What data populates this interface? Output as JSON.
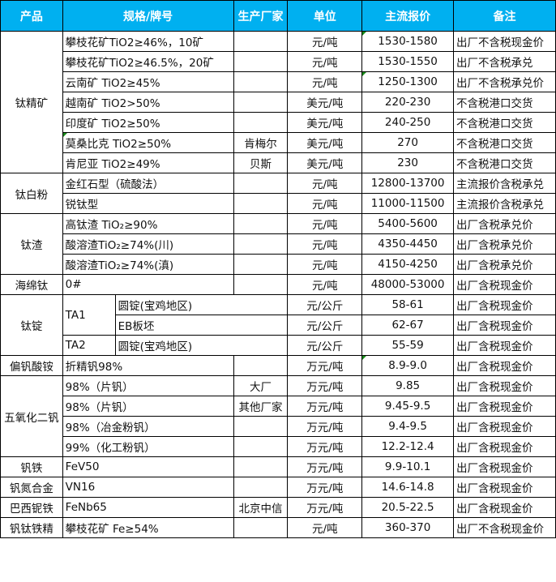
{
  "header": {
    "product": "产品",
    "spec": "规格/牌号",
    "producer": "生产厂家",
    "unit": "单位",
    "price": "主流报价",
    "note": "备注"
  },
  "colors": {
    "header_bg": "#00b0f0",
    "comment_marker": "#1a8a1a"
  },
  "groups": [
    {
      "product": "钛精矿",
      "rows": [
        {
          "spec": "攀枝花矿TiO2≥46%，10矿",
          "producer": "",
          "unit": "元/吨",
          "price": "1530-1580",
          "note": "出厂不含税现金价",
          "price_flag": true
        },
        {
          "spec": "攀枝花矿TiO2≥46.5%，20矿",
          "producer": "",
          "unit": "元/吨",
          "price": "1530-1550",
          "note": "出厂不含税承兑"
        },
        {
          "spec": "云南矿 TiO2≥45%",
          "producer": "",
          "unit": "元/吨",
          "price": "1250-1300",
          "note": "出厂不含税承兑价",
          "price_flag": true
        },
        {
          "spec": "越南矿 TiO2>50%",
          "producer": "",
          "unit": "美元/吨",
          "price": "220-230",
          "note": "不含税港口交货"
        },
        {
          "spec": "印度矿 TiO2≥50%",
          "producer": "",
          "unit": "美元/吨",
          "price": "240-250",
          "note": "不含税港口交货"
        },
        {
          "spec": "莫桑比克 TiO2≥50%",
          "producer": "肯梅尔",
          "unit": "美元/吨",
          "price": "270",
          "note": "不含税港口交货",
          "spec_flag": true
        },
        {
          "spec": "肯尼亚 TiO2≥49%",
          "producer": "贝斯",
          "unit": "美元/吨",
          "price": "230",
          "note": "不含税港口交货"
        }
      ]
    },
    {
      "product": "钛白粉",
      "rows": [
        {
          "spec": "金红石型（硫酸法）",
          "producer": "",
          "unit": "元/吨",
          "price": "12800-13700",
          "note": "主流报价含税承兑"
        },
        {
          "spec": "锐钛型",
          "producer": "",
          "unit": "元/吨",
          "price": "11000-11500",
          "note": "主流报价含税承兑"
        }
      ]
    },
    {
      "product": "钛渣",
      "rows": [
        {
          "spec": "高钛渣 TiO₂≥90%",
          "producer": "",
          "unit": "元/吨",
          "price": "5400-5600",
          "note": "出厂含税承兑价"
        },
        {
          "spec": "酸溶渣TiO₂≥74%(川)",
          "producer": "",
          "unit": "元/吨",
          "price": "4350-4450",
          "note": "出厂含税承兑价"
        },
        {
          "spec": "酸溶渣TiO₂≥74%(滇)",
          "producer": "",
          "unit": "元/吨",
          "price": "4150-4250",
          "note": "出厂含税承兑价"
        }
      ]
    },
    {
      "product": "海绵钛",
      "rows": [
        {
          "spec": "0#",
          "producer": "",
          "unit": "元/吨",
          "price": "48000-53000",
          "note": "出厂含税现金价"
        }
      ]
    },
    {
      "product": "钛锭",
      "rows": [
        {
          "grade": "TA1",
          "spec": "圆锭(宝鸡地区)",
          "unit": "元/公斤",
          "price": "58-61",
          "note": "出厂含税现金价"
        },
        {
          "grade": "TA1",
          "spec": "EB板坯",
          "unit": "元/公斤",
          "price": "62-67",
          "note": "出厂含税现金价"
        },
        {
          "grade": "TA2",
          "spec": "圆锭(宝鸡地区)",
          "unit": "元/公斤",
          "price": "55-59",
          "note": "出厂含税现金价"
        }
      ]
    },
    {
      "product": "偏钒酸铵",
      "rows": [
        {
          "spec": "折精钒98%",
          "producer": "",
          "unit": "万元/吨",
          "price": "8.9-9.0",
          "note": "出厂含税现金价",
          "price_flag": true
        }
      ]
    },
    {
      "product": "五氧化二钒",
      "rows": [
        {
          "spec": "98%（片钒）",
          "producer": "大厂",
          "unit": "万元/吨",
          "price": "9.85",
          "note": "出厂含税现金价"
        },
        {
          "spec": "98%（片钒）",
          "producer": "其他厂家",
          "unit": "万元/吨",
          "price": "9.45-9.5",
          "note": "出厂含税现金价"
        },
        {
          "spec": "98%（冶金粉钒）",
          "producer": "",
          "unit": "万元/吨",
          "price": "9.4-9.5",
          "note": "出厂含税现金价"
        },
        {
          "spec": "99%（化工粉钒）",
          "producer": "",
          "unit": "万元/吨",
          "price": "12.2-12.4",
          "note": "出厂含税现金价"
        }
      ]
    },
    {
      "product": "钒铁",
      "rows": [
        {
          "spec": "FeV50",
          "producer": "",
          "unit": "万元/吨",
          "price": "9.9-10.1",
          "note": "出厂含税现金价"
        }
      ]
    },
    {
      "product": "钒氮合金",
      "rows": [
        {
          "spec": "VN16",
          "producer": "",
          "unit": "万元/吨",
          "price": "14.6-14.8",
          "note": "出厂含税现金价"
        }
      ]
    },
    {
      "product": "巴西铌铁",
      "rows": [
        {
          "spec": "FeNb65",
          "producer": "北京中信",
          "unit": "万元/吨",
          "price": "20.5-22.5",
          "note": "出厂含税现金价"
        }
      ]
    },
    {
      "product": "钒钛铁精",
      "rows": [
        {
          "spec": "攀枝花矿 Fe≥54%",
          "producer": "",
          "unit": "元/吨",
          "price": "360-370",
          "note": "出厂不含税现金价"
        }
      ]
    }
  ]
}
